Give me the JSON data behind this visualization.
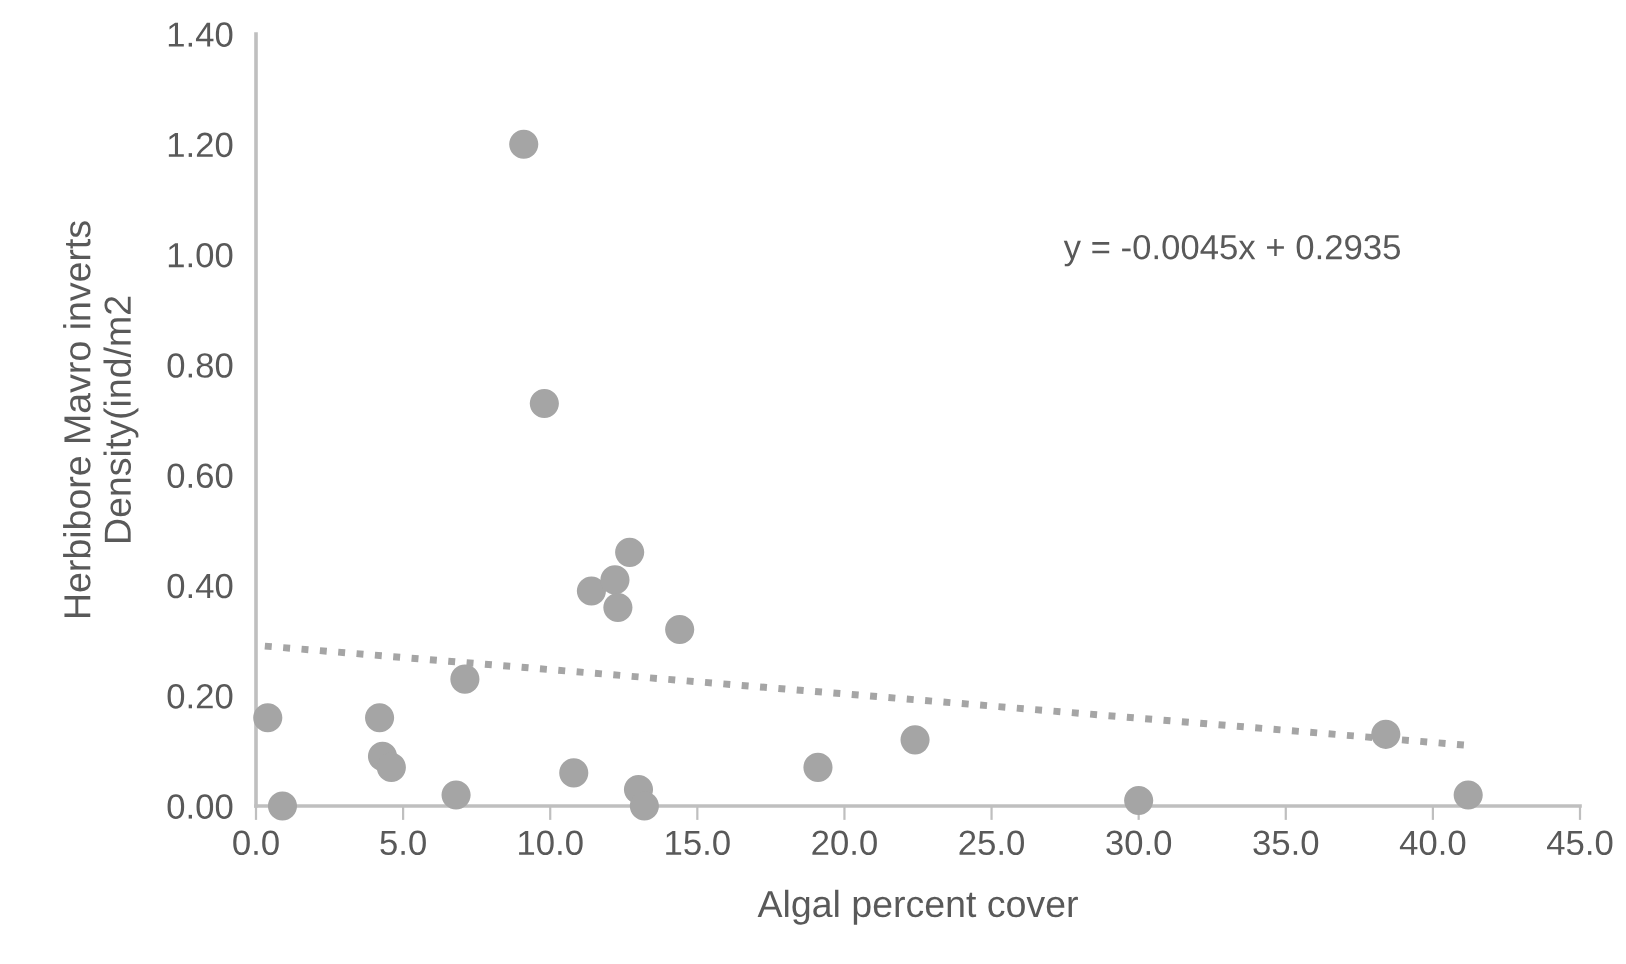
{
  "chart_data": {
    "type": "scatter",
    "xlabel": "Algal percent cover",
    "ylabel": "Herbibore Mavro inverts\nDensity(ind/m2",
    "annotations": [
      "y = -0.0045x + 0.2935"
    ],
    "xlim": [
      0,
      45
    ],
    "ylim": [
      0,
      1.4
    ],
    "xticks": [
      {
        "value": 0,
        "label": "0.0"
      },
      {
        "value": 5,
        "label": "5.0"
      },
      {
        "value": 10,
        "label": "10.0"
      },
      {
        "value": 15,
        "label": "15.0"
      },
      {
        "value": 20,
        "label": "20.0"
      },
      {
        "value": 25,
        "label": "25.0"
      },
      {
        "value": 30,
        "label": "30.0"
      },
      {
        "value": 35,
        "label": "35.0"
      },
      {
        "value": 40,
        "label": "40.0"
      },
      {
        "value": 45,
        "label": "45.0"
      }
    ],
    "yticks": [
      {
        "value": 0,
        "label": "0.00"
      },
      {
        "value": 0.2,
        "label": "0.20"
      },
      {
        "value": 0.4,
        "label": "0.40"
      },
      {
        "value": 0.6,
        "label": "0.60"
      },
      {
        "value": 0.8,
        "label": "0.80"
      },
      {
        "value": 1.0,
        "label": "1.00"
      },
      {
        "value": 1.2,
        "label": "1.20"
      },
      {
        "value": 1.4,
        "label": "1.40"
      }
    ],
    "grid": false,
    "legend": false,
    "series": [
      {
        "marker": "circle",
        "color": "#a5a5a5",
        "x": [
          0.4,
          0.9,
          4.2,
          4.3,
          4.6,
          6.8,
          7.1,
          9.1,
          9.8,
          10.8,
          11.4,
          12.2,
          12.3,
          12.7,
          13.0,
          13.2,
          14.4,
          19.1,
          22.4,
          30.0,
          38.4,
          41.2
        ],
        "values": [
          0.16,
          0.0,
          0.16,
          0.09,
          0.07,
          0.02,
          0.23,
          1.2,
          0.73,
          0.06,
          0.39,
          0.41,
          0.36,
          0.46,
          0.03,
          0.0,
          0.32,
          0.07,
          0.12,
          0.01,
          0.13,
          0.02
        ]
      },
      {
        "type": "line",
        "color": "#a5a5a5",
        "line_style": "dotted",
        "x": [
          0.3,
          41.2
        ],
        "values": [
          0.29,
          0.11
        ]
      }
    ]
  }
}
